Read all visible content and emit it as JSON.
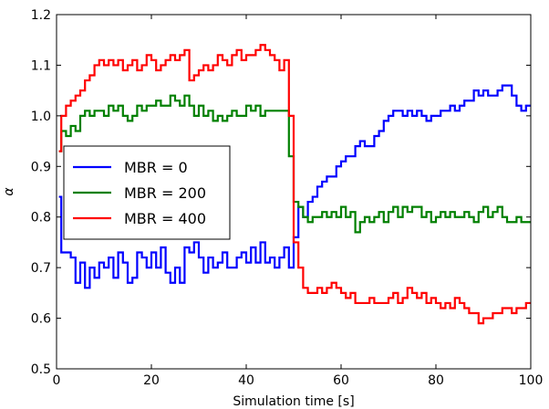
{
  "chart_data": {
    "type": "line",
    "xlabel": "Simulation time [s]",
    "ylabel": "α",
    "xlim": [
      0,
      100
    ],
    "ylim": [
      0.5,
      1.2
    ],
    "xticks": [
      0,
      20,
      40,
      60,
      80,
      100
    ],
    "yticks": [
      0.5,
      0.6,
      0.7,
      0.8,
      0.9,
      1.0,
      1.1,
      1.2
    ],
    "xtick_labels": [
      "0",
      "20",
      "40",
      "60",
      "80",
      "100"
    ],
    "ytick_labels": [
      "0.5",
      "0.6",
      "0.7",
      "0.8",
      "0.9",
      "1.0",
      "1.1",
      "1.2"
    ],
    "grid": false,
    "legend_position": "left",
    "step": true,
    "series": [
      {
        "name": "MBR = 0",
        "color": "#0000ff",
        "x": [
          0.5,
          1,
          2,
          3,
          4,
          5,
          6,
          7,
          8,
          9,
          10,
          11,
          12,
          13,
          14,
          15,
          16,
          17,
          18,
          19,
          20,
          21,
          22,
          23,
          24,
          25,
          26,
          27,
          28,
          29,
          30,
          31,
          32,
          33,
          34,
          35,
          36,
          37,
          38,
          39,
          40,
          41,
          42,
          43,
          44,
          45,
          46,
          47,
          48,
          49,
          50,
          51,
          52,
          53,
          54,
          55,
          56,
          57,
          58,
          59,
          60,
          61,
          62,
          63,
          64,
          65,
          66,
          67,
          68,
          69,
          70,
          71,
          72,
          73,
          74,
          75,
          76,
          77,
          78,
          79,
          80,
          81,
          82,
          83,
          84,
          85,
          86,
          87,
          88,
          89,
          90,
          91,
          92,
          93,
          94,
          95,
          96,
          97,
          98,
          99
        ],
        "y": [
          0.84,
          0.73,
          0.73,
          0.72,
          0.67,
          0.71,
          0.66,
          0.7,
          0.68,
          0.71,
          0.7,
          0.72,
          0.68,
          0.73,
          0.71,
          0.67,
          0.68,
          0.73,
          0.72,
          0.7,
          0.73,
          0.7,
          0.74,
          0.69,
          0.67,
          0.7,
          0.67,
          0.74,
          0.73,
          0.75,
          0.72,
          0.69,
          0.72,
          0.7,
          0.71,
          0.73,
          0.7,
          0.7,
          0.72,
          0.73,
          0.71,
          0.74,
          0.71,
          0.75,
          0.71,
          0.72,
          0.7,
          0.72,
          0.74,
          0.7,
          0.76,
          0.82,
          0.8,
          0.83,
          0.84,
          0.86,
          0.87,
          0.88,
          0.88,
          0.9,
          0.91,
          0.92,
          0.92,
          0.94,
          0.95,
          0.94,
          0.94,
          0.96,
          0.97,
          0.99,
          1.0,
          1.01,
          1.01,
          1.0,
          1.01,
          1.0,
          1.01,
          1.0,
          0.99,
          1.0,
          1.0,
          1.01,
          1.01,
          1.02,
          1.01,
          1.02,
          1.03,
          1.03,
          1.05,
          1.04,
          1.05,
          1.04,
          1.04,
          1.05,
          1.06,
          1.06,
          1.04,
          1.02,
          1.01,
          1.02
        ]
      },
      {
        "name": "MBR = 200",
        "color": "#008000",
        "x": [
          0.5,
          1,
          2,
          3,
          4,
          5,
          6,
          7,
          8,
          9,
          10,
          11,
          12,
          13,
          14,
          15,
          16,
          17,
          18,
          19,
          20,
          21,
          22,
          23,
          24,
          25,
          26,
          27,
          28,
          29,
          30,
          31,
          32,
          33,
          34,
          35,
          36,
          37,
          38,
          39,
          40,
          41,
          42,
          43,
          44,
          45,
          46,
          47,
          48,
          49,
          50,
          51,
          52,
          53,
          54,
          55,
          56,
          57,
          58,
          59,
          60,
          61,
          62,
          63,
          64,
          65,
          66,
          67,
          68,
          69,
          70,
          71,
          72,
          73,
          74,
          75,
          76,
          77,
          78,
          79,
          80,
          81,
          82,
          83,
          84,
          85,
          86,
          87,
          88,
          89,
          90,
          91,
          92,
          93,
          94,
          95,
          96,
          97,
          98,
          99
        ],
        "y": [
          0.93,
          0.97,
          0.96,
          0.98,
          0.97,
          1.0,
          1.01,
          1.0,
          1.01,
          1.01,
          1.0,
          1.02,
          1.01,
          1.02,
          1.0,
          0.99,
          1.0,
          1.02,
          1.01,
          1.02,
          1.02,
          1.03,
          1.02,
          1.02,
          1.04,
          1.03,
          1.02,
          1.04,
          1.02,
          1.0,
          1.02,
          1.0,
          1.01,
          0.99,
          1.0,
          0.99,
          1.0,
          1.01,
          1.0,
          1.0,
          1.02,
          1.01,
          1.02,
          1.0,
          1.01,
          1.01,
          1.01,
          1.01,
          1.01,
          0.92,
          0.83,
          0.82,
          0.8,
          0.79,
          0.8,
          0.8,
          0.81,
          0.8,
          0.81,
          0.8,
          0.82,
          0.8,
          0.81,
          0.77,
          0.79,
          0.8,
          0.79,
          0.8,
          0.81,
          0.79,
          0.81,
          0.82,
          0.8,
          0.82,
          0.81,
          0.82,
          0.82,
          0.8,
          0.81,
          0.79,
          0.8,
          0.81,
          0.8,
          0.81,
          0.8,
          0.8,
          0.81,
          0.8,
          0.79,
          0.81,
          0.82,
          0.8,
          0.81,
          0.82,
          0.8,
          0.79,
          0.79,
          0.8,
          0.79,
          0.79
        ]
      },
      {
        "name": "MBR = 400",
        "color": "#ff0000",
        "x": [
          0.5,
          1,
          2,
          3,
          4,
          5,
          6,
          7,
          8,
          9,
          10,
          11,
          12,
          13,
          14,
          15,
          16,
          17,
          18,
          19,
          20,
          21,
          22,
          23,
          24,
          25,
          26,
          27,
          28,
          29,
          30,
          31,
          32,
          33,
          34,
          35,
          36,
          37,
          38,
          39,
          40,
          41,
          42,
          43,
          44,
          45,
          46,
          47,
          48,
          49,
          50,
          51,
          52,
          53,
          54,
          55,
          56,
          57,
          58,
          59,
          60,
          61,
          62,
          63,
          64,
          65,
          66,
          67,
          68,
          69,
          70,
          71,
          72,
          73,
          74,
          75,
          76,
          77,
          78,
          79,
          80,
          81,
          82,
          83,
          84,
          85,
          86,
          87,
          88,
          89,
          90,
          91,
          92,
          93,
          94,
          95,
          96,
          97,
          98,
          99
        ],
        "y": [
          0.93,
          1.0,
          1.02,
          1.03,
          1.04,
          1.05,
          1.07,
          1.08,
          1.1,
          1.11,
          1.1,
          1.11,
          1.1,
          1.11,
          1.09,
          1.1,
          1.11,
          1.09,
          1.1,
          1.12,
          1.11,
          1.09,
          1.1,
          1.11,
          1.12,
          1.11,
          1.12,
          1.13,
          1.07,
          1.08,
          1.09,
          1.1,
          1.09,
          1.1,
          1.12,
          1.11,
          1.1,
          1.12,
          1.13,
          1.11,
          1.12,
          1.12,
          1.13,
          1.14,
          1.13,
          1.12,
          1.11,
          1.09,
          1.11,
          1.0,
          0.75,
          0.7,
          0.66,
          0.65,
          0.65,
          0.66,
          0.65,
          0.66,
          0.67,
          0.66,
          0.65,
          0.64,
          0.65,
          0.63,
          0.63,
          0.63,
          0.64,
          0.63,
          0.63,
          0.63,
          0.64,
          0.65,
          0.63,
          0.64,
          0.66,
          0.65,
          0.64,
          0.65,
          0.63,
          0.64,
          0.63,
          0.62,
          0.63,
          0.62,
          0.64,
          0.63,
          0.62,
          0.61,
          0.61,
          0.59,
          0.6,
          0.6,
          0.61,
          0.61,
          0.62,
          0.62,
          0.61,
          0.62,
          0.62,
          0.63
        ]
      }
    ]
  }
}
